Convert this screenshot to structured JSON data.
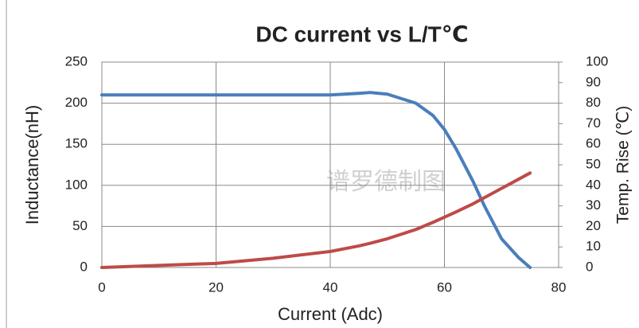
{
  "chart_data": {
    "type": "line",
    "title": "DC current vs L/T℃",
    "x_label": "Current (Adc)",
    "y_label": "Inductance(nH)",
    "y2_label": "Temp. Rise (℃)",
    "annotation": "谱罗德制图",
    "x": [
      0,
      10,
      20,
      30,
      40,
      45,
      47,
      50,
      55,
      58,
      60,
      62,
      65,
      67,
      70,
      73,
      75
    ],
    "series": [
      {
        "color": "#4a7ebb",
        "values": [
          210,
          210,
          210,
          210,
          210,
          212,
          213,
          211,
          200,
          185,
          168,
          145,
          105,
          75,
          35,
          12,
          0
        ]
      },
      {
        "color": "#be4b48",
        "axis": "y2",
        "values": [
          0,
          1,
          2,
          4.5,
          7.8,
          10.5,
          11.8,
          14,
          18.5,
          22,
          24.5,
          27,
          31,
          34,
          38.5,
          43,
          46
        ]
      }
    ],
    "xlim": [
      0,
      80
    ],
    "xticks": [
      0,
      20,
      40,
      60,
      80
    ],
    "ylim": [
      0,
      250
    ],
    "yticks": [
      0,
      50,
      100,
      150,
      200,
      250
    ],
    "y2lim": [
      0,
      100
    ],
    "y2ticks": [
      0,
      10,
      20,
      30,
      40,
      50,
      60,
      70,
      80,
      90,
      100
    ],
    "grid": true
  }
}
